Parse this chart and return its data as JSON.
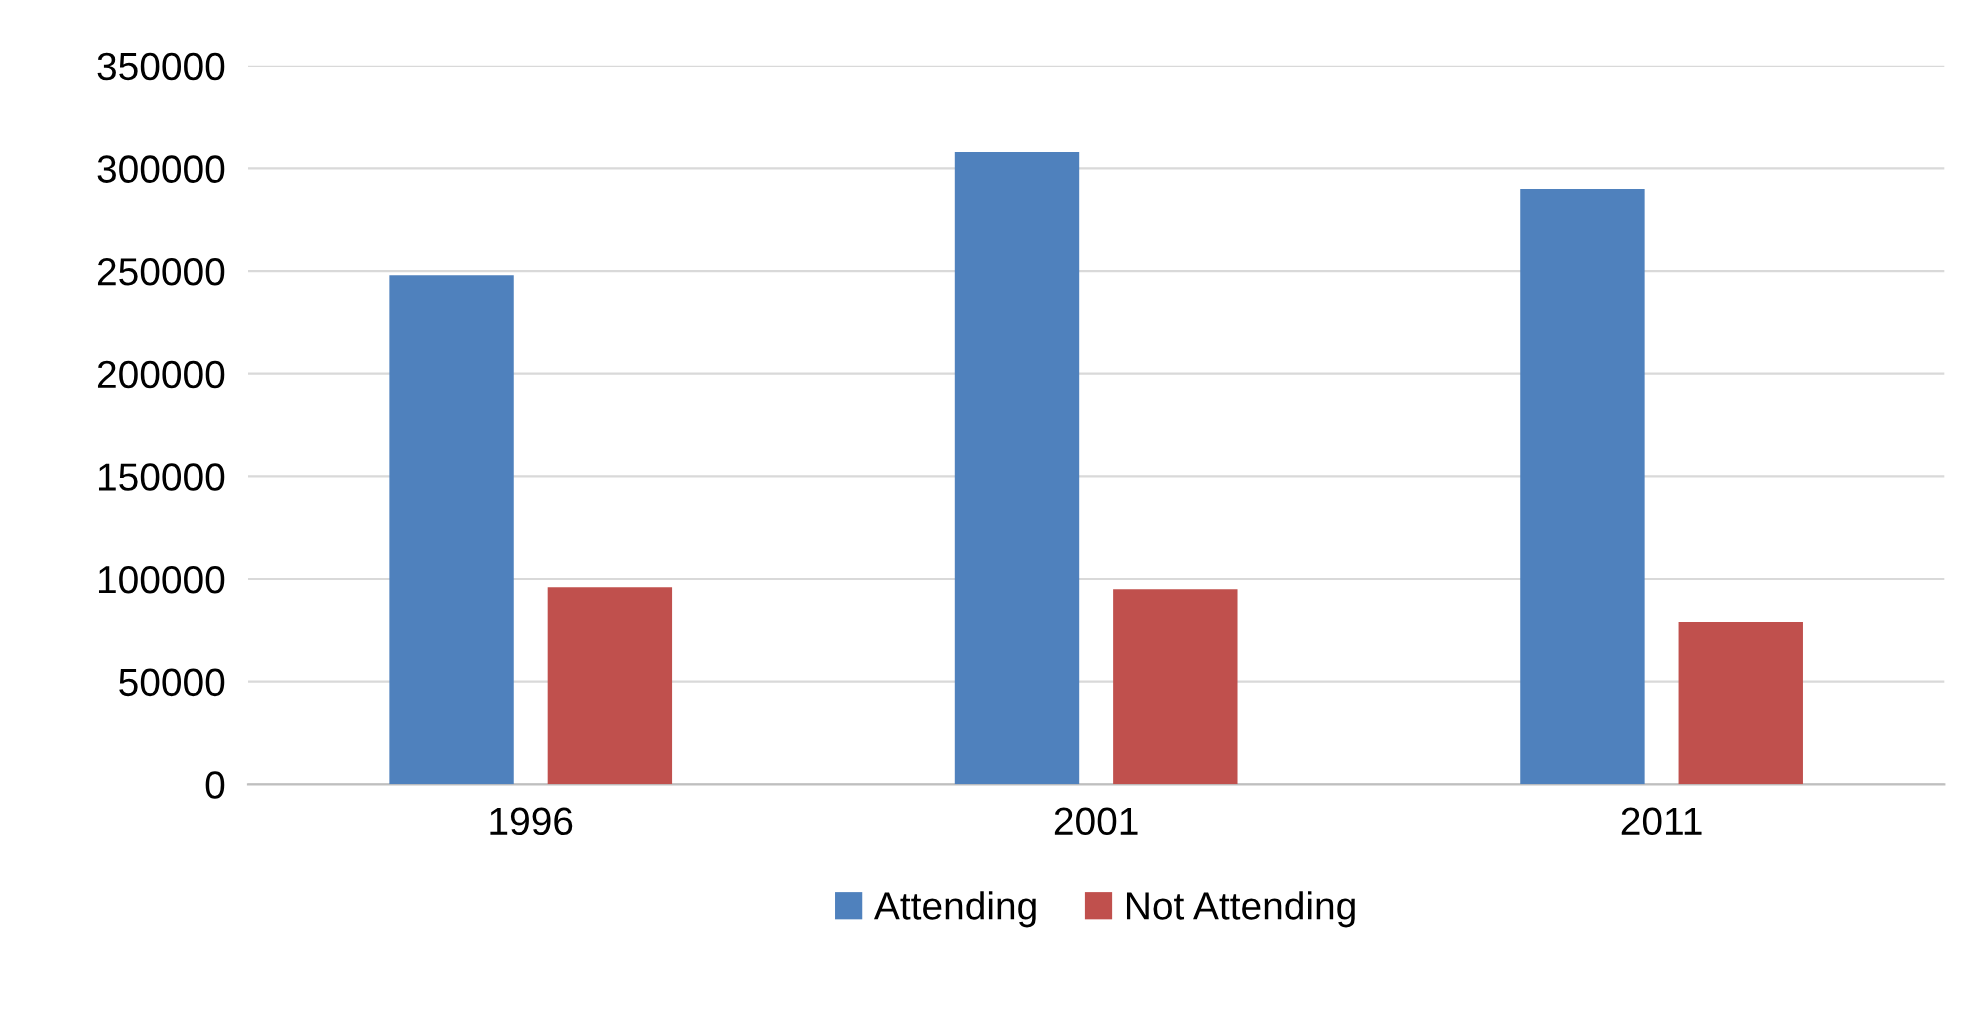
{
  "chart_data": {
    "type": "bar",
    "categories": [
      "1996",
      "2001",
      "2011"
    ],
    "series": [
      {
        "name": "Attending",
        "color": "#4f81bd",
        "values": [
          248000,
          308000,
          290000
        ]
      },
      {
        "name": "Not Attending",
        "color": "#c0504d",
        "values": [
          96000,
          95000,
          79000
        ]
      }
    ],
    "ylim": [
      0,
      350000
    ],
    "yticks": [
      0,
      50000,
      100000,
      150000,
      200000,
      250000,
      300000,
      350000
    ],
    "grid": "y",
    "legend": "bottom"
  }
}
